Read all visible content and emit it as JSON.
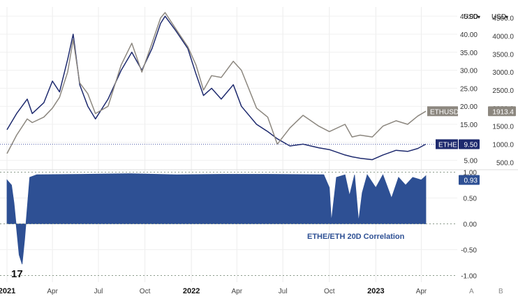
{
  "chart_data": [
    {
      "type": "line",
      "title": "",
      "x_labels": [
        "2021",
        "Apr",
        "Jul",
        "Oct",
        "2022",
        "Apr",
        "Jul",
        "Oct",
        "2023",
        "Apr"
      ],
      "left_axis": {
        "unit": "USD",
        "ylim": [
          3,
          46
        ],
        "ticks": [
          "5.00",
          "10.00",
          "15.00",
          "20.00",
          "25.00",
          "30.00",
          "35.00",
          "40.00",
          "45.00"
        ]
      },
      "right_axis": {
        "unit": "USD",
        "ylim": [
          350,
          4650
        ],
        "ticks": [
          "500.0",
          "1000.0",
          "1500.0",
          "2000.0",
          "2500.0",
          "3000.0",
          "3500.0",
          "4000.0",
          "4500.0"
        ]
      },
      "series": [
        {
          "name": "ETHE",
          "axis": "left",
          "color": "#1e2a6e",
          "last_value": "9.50",
          "x": [
            "2021-01-01",
            "2021-01-20",
            "2021-02-10",
            "2021-02-20",
            "2021-03-15",
            "2021-04-01",
            "2021-04-15",
            "2021-05-01",
            "2021-05-12",
            "2021-05-25",
            "2021-06-10",
            "2021-06-25",
            "2021-07-20",
            "2021-08-15",
            "2021-09-05",
            "2021-09-25",
            "2021-10-15",
            "2021-11-01",
            "2021-11-10",
            "2021-12-01",
            "2021-12-25",
            "2022-01-10",
            "2022-01-25",
            "2022-02-10",
            "2022-03-01",
            "2022-03-25",
            "2022-04-10",
            "2022-05-10",
            "2022-06-01",
            "2022-06-20",
            "2022-07-15",
            "2022-08-10",
            "2022-09-10",
            "2022-10-01",
            "2022-11-01",
            "2022-11-15",
            "2022-12-01",
            "2022-12-25",
            "2023-01-15",
            "2023-02-10",
            "2023-03-05",
            "2023-03-25",
            "2023-04-10"
          ],
          "y": [
            13.5,
            18,
            22,
            18,
            21,
            27,
            24,
            33,
            40,
            26,
            20,
            16.5,
            22,
            30,
            35,
            30,
            36,
            43,
            45,
            41,
            36,
            29,
            23,
            25,
            22,
            26,
            20,
            15,
            13,
            11,
            9,
            9.5,
            8.5,
            8,
            6.5,
            6,
            5.6,
            5.2,
            6.5,
            7.8,
            7.5,
            8.3,
            9.5
          ]
        },
        {
          "name": "ETHUSD",
          "axis": "right",
          "color": "#8c877f",
          "last_value": "1913.4",
          "x": [
            "2021-01-01",
            "2021-01-20",
            "2021-02-10",
            "2021-02-20",
            "2021-03-15",
            "2021-04-01",
            "2021-04-15",
            "2021-05-01",
            "2021-05-12",
            "2021-05-25",
            "2021-06-10",
            "2021-06-25",
            "2021-07-20",
            "2021-08-15",
            "2021-09-05",
            "2021-09-25",
            "2021-10-15",
            "2021-11-01",
            "2021-11-10",
            "2021-12-01",
            "2021-12-25",
            "2022-01-10",
            "2022-01-25",
            "2022-02-10",
            "2022-03-01",
            "2022-03-25",
            "2022-04-10",
            "2022-05-10",
            "2022-06-01",
            "2022-06-20",
            "2022-07-15",
            "2022-08-10",
            "2022-09-10",
            "2022-10-01",
            "2022-11-01",
            "2022-11-15",
            "2022-12-01",
            "2022-12-25",
            "2023-01-15",
            "2023-02-10",
            "2023-03-05",
            "2023-03-25",
            "2023-04-10"
          ],
          "y": [
            740,
            1250,
            1700,
            1600,
            1750,
            2000,
            2300,
            3000,
            3900,
            2700,
            2400,
            1850,
            2050,
            3200,
            3800,
            3000,
            3800,
            4500,
            4650,
            4200,
            3700,
            3200,
            2500,
            2900,
            2850,
            3300,
            3050,
            2000,
            1750,
            1000,
            1450,
            1800,
            1500,
            1350,
            1550,
            1200,
            1250,
            1200,
            1500,
            1650,
            1550,
            1780,
            1913.4
          ]
        }
      ]
    },
    {
      "type": "area",
      "legend": "ETHE/ETH 20D Correlation",
      "color": "#2e5094",
      "last_value": "0.93",
      "ylim": [
        -1.0,
        1.0
      ],
      "ticks": [
        "1.00",
        "0.50",
        "0.00",
        "-0.50",
        "-1.00"
      ],
      "x": [
        "2021-01-01",
        "2021-01-10",
        "2021-01-15",
        "2021-01-25",
        "2021-01-31",
        "2021-02-05",
        "2021-02-15",
        "2021-03-01",
        "2021-06-01",
        "2021-09-01",
        "2021-12-01",
        "2022-03-01",
        "2022-06-01",
        "2022-09-20",
        "2022-10-01",
        "2022-10-05",
        "2022-10-15",
        "2022-11-01",
        "2022-11-10",
        "2022-11-20",
        "2022-11-28",
        "2022-12-05",
        "2022-12-15",
        "2023-01-01",
        "2023-01-15",
        "2023-02-01",
        "2023-02-15",
        "2023-03-01",
        "2023-03-15",
        "2023-04-01",
        "2023-04-10"
      ],
      "y": [
        0.85,
        0.75,
        0.4,
        -0.6,
        -0.78,
        -0.3,
        0.9,
        0.95,
        0.96,
        0.97,
        0.95,
        0.96,
        0.96,
        0.95,
        0.7,
        0.05,
        0.9,
        0.95,
        0.55,
        0.95,
        0.05,
        0.6,
        0.95,
        0.7,
        0.95,
        0.5,
        0.9,
        0.75,
        0.9,
        0.85,
        0.93
      ]
    }
  ],
  "ui": {
    "currency_left": "USD",
    "currency_right": "USD",
    "dropdown_glyph": "▾",
    "logo_text": "17",
    "scale_buttons": [
      "A",
      "B"
    ]
  }
}
